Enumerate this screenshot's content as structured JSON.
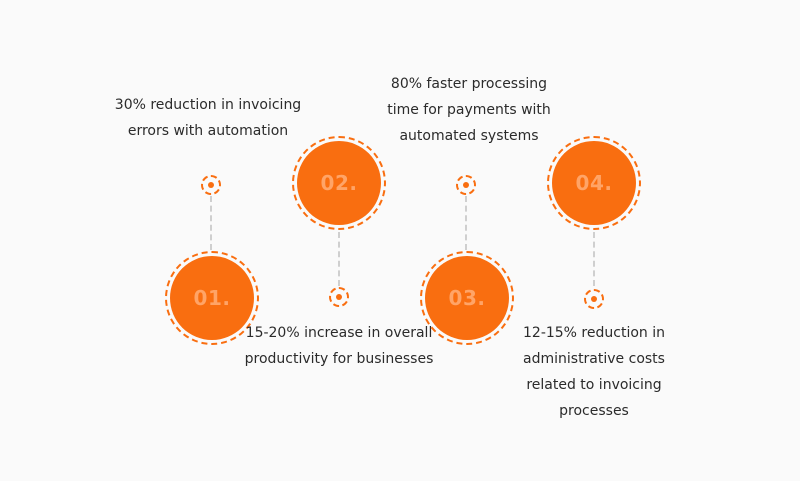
{
  "steps": [
    {
      "number": "01.",
      "text": "30% reduction in invoicing errors with automation"
    },
    {
      "number": "02.",
      "text": "15-20% increase in overall productivity for businesses"
    },
    {
      "number": "03.",
      "text": "80% faster processing time for payments with automated systems"
    },
    {
      "number": "04.",
      "text": "12-15% reduction in administrative costs related to invoicing processes"
    }
  ],
  "colors": {
    "accent": "#f96e10",
    "number": "#ffa467",
    "connector": "#cfcfcf",
    "text": "#2b2b2b"
  }
}
